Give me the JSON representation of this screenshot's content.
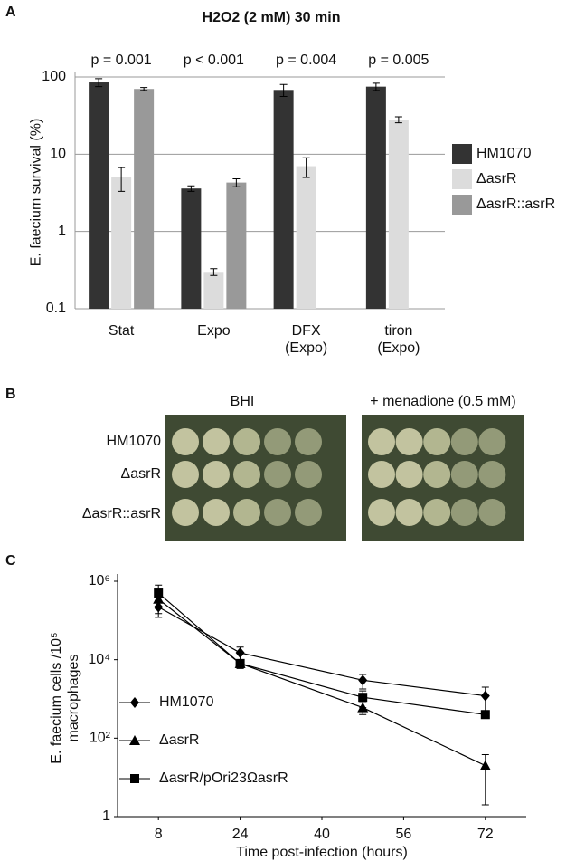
{
  "panel_letters": [
    "A",
    "B",
    "C"
  ],
  "chart_data": [
    {
      "type": "bar",
      "title": "H2O2 (2 mM) 30 min",
      "ylabel": "E. faecium survival (%)",
      "categories": [
        "Stat",
        "Expo",
        "DFX (Expo)",
        "tiron (Expo)"
      ],
      "annotations": [
        "p = 0.001",
        "p < 0.001",
        "p = 0.004",
        "p = 0.005"
      ],
      "log_scale": true,
      "ylim": [
        0.1,
        100
      ],
      "yticks": [
        0.1,
        1,
        10,
        100
      ],
      "grid": true,
      "legend": "right",
      "series": [
        {
          "name": "HM1070",
          "color": "#333333",
          "values": [
            85,
            3.6,
            68,
            75
          ],
          "errors": [
            10,
            0.3,
            12,
            8
          ]
        },
        {
          "name": "ΔasrR",
          "color": "#dcdcdc",
          "values": [
            5,
            0.3,
            7,
            28
          ],
          "errors": [
            1.7,
            0.03,
            2,
            2.5
          ]
        },
        {
          "name": "ΔasrR::asrR",
          "color": "#999999",
          "values": [
            70,
            4.3,
            null,
            null
          ],
          "errors": [
            3,
            0.5,
            null,
            null
          ]
        }
      ]
    },
    {
      "type": "line",
      "xlabel": "Time post-infection (hours)",
      "ylabel": "E. faecium cells /10⁵ macrophages",
      "x": [
        8,
        24,
        48,
        72
      ],
      "xlim": [
        0,
        80
      ],
      "xticks": [
        8,
        24,
        40,
        56,
        72
      ],
      "log_scale": true,
      "ylim": [
        1,
        1000000
      ],
      "yticks": [
        1,
        {
          "value": 100,
          "label": "10²"
        },
        {
          "value": 10000,
          "label": "10⁴"
        },
        {
          "value": 1000000,
          "label": "10⁶"
        }
      ],
      "legend": "left",
      "series": [
        {
          "name": "HM1070",
          "color": "#000000",
          "marker": "diamond",
          "values": [
            220000,
            15000,
            3000,
            1200
          ],
          "errors": [
            100000,
            6000,
            1200,
            800
          ]
        },
        {
          "name": "ΔasrR",
          "color": "#000000",
          "marker": "triangle",
          "values": [
            350000,
            8000,
            600,
            20
          ],
          "errors": [
            200000,
            2000,
            200,
            18
          ]
        },
        {
          "name": "ΔasrR/pOri23ΩasrR",
          "color": "#000000",
          "marker": "square",
          "values": [
            500000,
            8000,
            1100,
            400
          ],
          "errors": [
            300000,
            2000,
            500,
            50
          ]
        }
      ]
    }
  ],
  "plates": {
    "columns": [
      "BHI",
      "+ menadione (0.5 mM)"
    ],
    "rows": [
      "HM1070",
      "ΔasrR",
      "ΔasrR::asrR"
    ]
  }
}
